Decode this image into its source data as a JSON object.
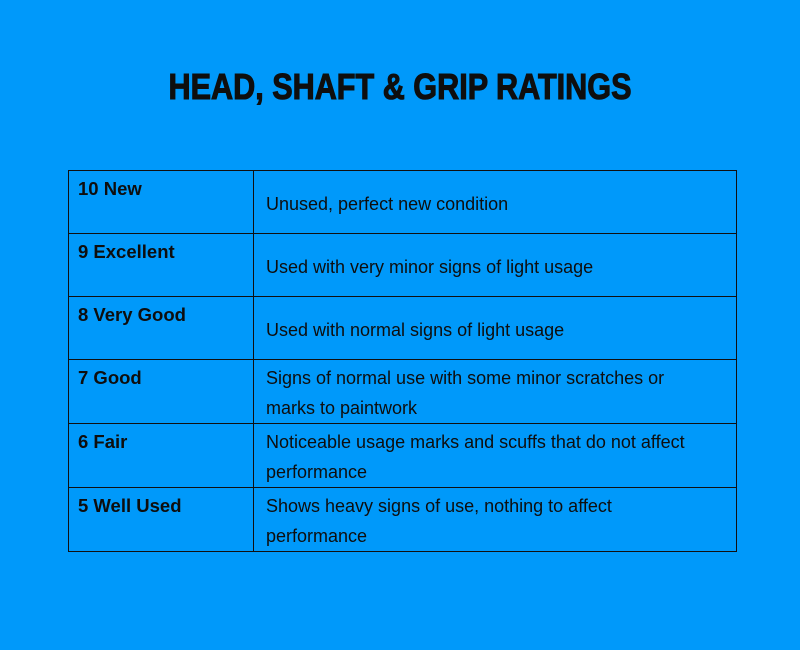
{
  "page": {
    "title": "HEAD, SHAFT & GRIP RATINGS",
    "background_color": "#0099fa",
    "text_color": "#0e0e0e",
    "border_color": "#101010"
  },
  "ratings_table": {
    "rows": [
      {
        "label": "10 New",
        "description": "Unused, perfect new condition"
      },
      {
        "label": "9 Excellent",
        "description": "Used with very minor signs of light usage"
      },
      {
        "label": "8 Very Good",
        "description": "Used with normal signs of light usage"
      },
      {
        "label": "7 Good",
        "description": "Signs of normal use with some minor scratches or marks to paintwork"
      },
      {
        "label": "6 Fair",
        "description": "Noticeable usage marks and scuffs that do not affect performance"
      },
      {
        "label": "5 Well Used",
        "description": "Shows heavy signs of use, nothing to affect performance"
      }
    ]
  }
}
